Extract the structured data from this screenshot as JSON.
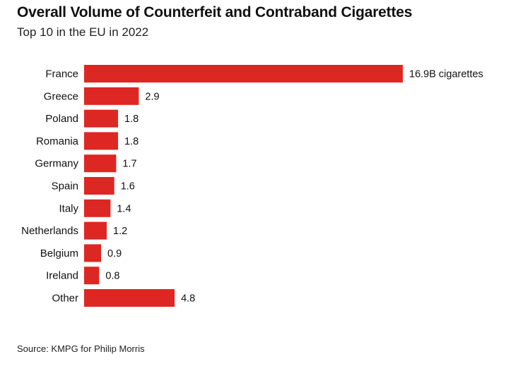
{
  "title": "Overall Volume of Counterfeit and Contraband Cigarettes",
  "subtitle": "Top 10 in the EU in 2022",
  "source": "Source: KMPG for Philip Morris",
  "colors": {
    "bar": "#dc2723",
    "text": "#111111"
  },
  "chart_data": {
    "type": "bar",
    "orientation": "horizontal",
    "categories": [
      "France",
      "Greece",
      "Poland",
      "Romania",
      "Germany",
      "Spain",
      "Italy",
      "Netherlands",
      "Belgium",
      "Ireland",
      "Other"
    ],
    "values": [
      16.9,
      2.9,
      1.8,
      1.8,
      1.7,
      1.6,
      1.4,
      1.2,
      0.9,
      0.8,
      4.8
    ],
    "value_labels": [
      "16.9B cigarettes",
      "2.9",
      "1.8",
      "1.8",
      "1.7",
      "1.6",
      "1.4",
      "1.2",
      "0.9",
      "0.8",
      "4.8"
    ],
    "xlim": [
      0,
      16.9
    ],
    "grid": false,
    "title": "Overall Volume of Counterfeit and Contraband Cigarettes",
    "xlabel": "",
    "ylabel": ""
  }
}
